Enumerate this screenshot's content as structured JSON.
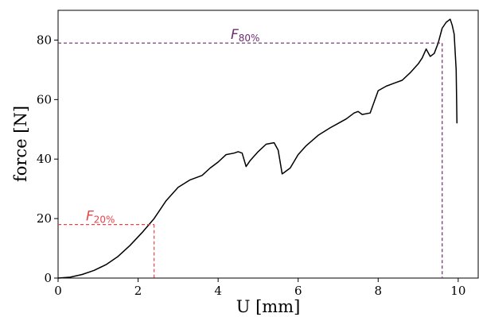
{
  "chart_data": {
    "type": "line",
    "xlabel": "U [mm]",
    "ylabel": "force [N]",
    "xlim": [
      0,
      10.5
    ],
    "ylim": [
      0,
      90
    ],
    "xticks": [
      0,
      2,
      4,
      6,
      8,
      10
    ],
    "yticks": [
      0,
      20,
      40,
      60,
      80
    ],
    "grid": false,
    "series": [
      {
        "color": "#000000",
        "x": [
          0.0,
          0.3,
          0.6,
          0.9,
          1.2,
          1.5,
          1.8,
          2.1,
          2.4,
          2.7,
          3.0,
          3.3,
          3.6,
          3.8,
          4.0,
          4.2,
          4.4,
          4.5,
          4.6,
          4.7,
          4.8,
          5.0,
          5.2,
          5.4,
          5.5,
          5.6,
          5.65,
          5.8,
          6.0,
          6.2,
          6.5,
          6.8,
          7.0,
          7.2,
          7.4,
          7.5,
          7.6,
          7.8,
          8.0,
          8.2,
          8.4,
          8.6,
          8.8,
          9.0,
          9.1,
          9.2,
          9.3,
          9.4,
          9.5,
          9.6,
          9.7,
          9.8,
          9.85,
          9.9,
          9.95,
          9.97
        ],
        "y": [
          0.0,
          0.3,
          1.2,
          2.6,
          4.5,
          7.3,
          11.0,
          15.3,
          20.0,
          26.0,
          30.5,
          33.0,
          34.5,
          37.0,
          39.0,
          41.5,
          42.0,
          42.5,
          42.0,
          37.5,
          39.5,
          42.5,
          45.0,
          45.5,
          43.0,
          35.0,
          35.5,
          37.0,
          41.5,
          44.5,
          48.0,
          50.5,
          52.0,
          53.5,
          55.5,
          56.0,
          55.0,
          55.5,
          63.0,
          64.5,
          65.5,
          66.5,
          69.0,
          72.0,
          74.0,
          77.0,
          74.5,
          75.5,
          79.0,
          84.0,
          86.0,
          87.0,
          85.0,
          82.0,
          70.0,
          52.0
        ]
      }
    ],
    "annotations": [
      {
        "label": "F",
        "subscript": "20%",
        "x": 2.4,
        "y": 18.0,
        "color": "#e8444a"
      },
      {
        "label": "F",
        "subscript": "80%",
        "x": 9.6,
        "y": 79.0,
        "color": "#6d2b6e"
      }
    ]
  }
}
